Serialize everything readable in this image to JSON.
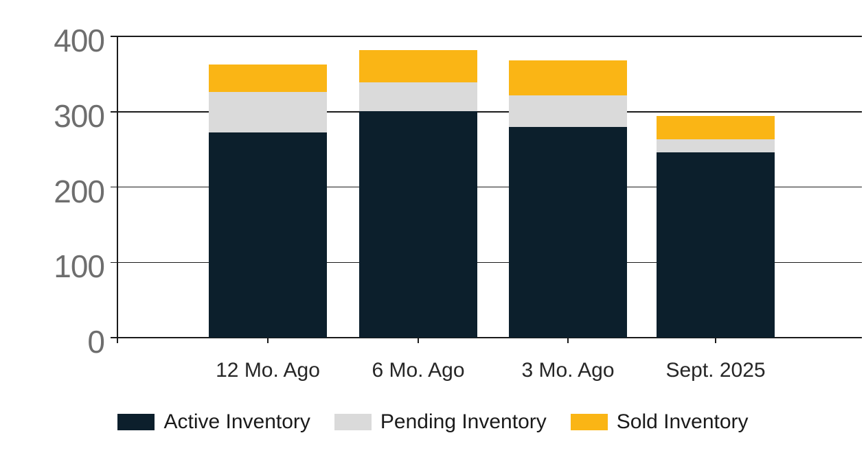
{
  "chart_data": {
    "type": "bar",
    "stacked": true,
    "title": "",
    "xlabel": "",
    "ylabel": "",
    "categories": [
      "12 Mo. Ago",
      "6 Mo. Ago",
      "3 Mo. Ago",
      "Sept. 2025"
    ],
    "series": [
      {
        "name": "Active Inventory",
        "color": "#0C1F2C",
        "values": [
          272,
          301,
          280,
          246
        ]
      },
      {
        "name": "Pending Inventory",
        "color": "#DADADA",
        "values": [
          54,
          38,
          42,
          17
        ]
      },
      {
        "name": "Sold Inventory",
        "color": "#FAB515",
        "values": [
          37,
          43,
          46,
          31
        ]
      }
    ],
    "y_ticks": [
      0,
      100,
      200,
      300,
      400
    ],
    "ylim": [
      0,
      400
    ],
    "grid": true,
    "legend_position": "bottom"
  },
  "style_colors": {
    "axis_line": "#1a1a1a",
    "gridline": "#1a1a1a",
    "y_tick_label": "#6E6E6E",
    "x_tick_label": "#262626",
    "legend_text": "#1a1a1a",
    "background": "#ffffff"
  }
}
